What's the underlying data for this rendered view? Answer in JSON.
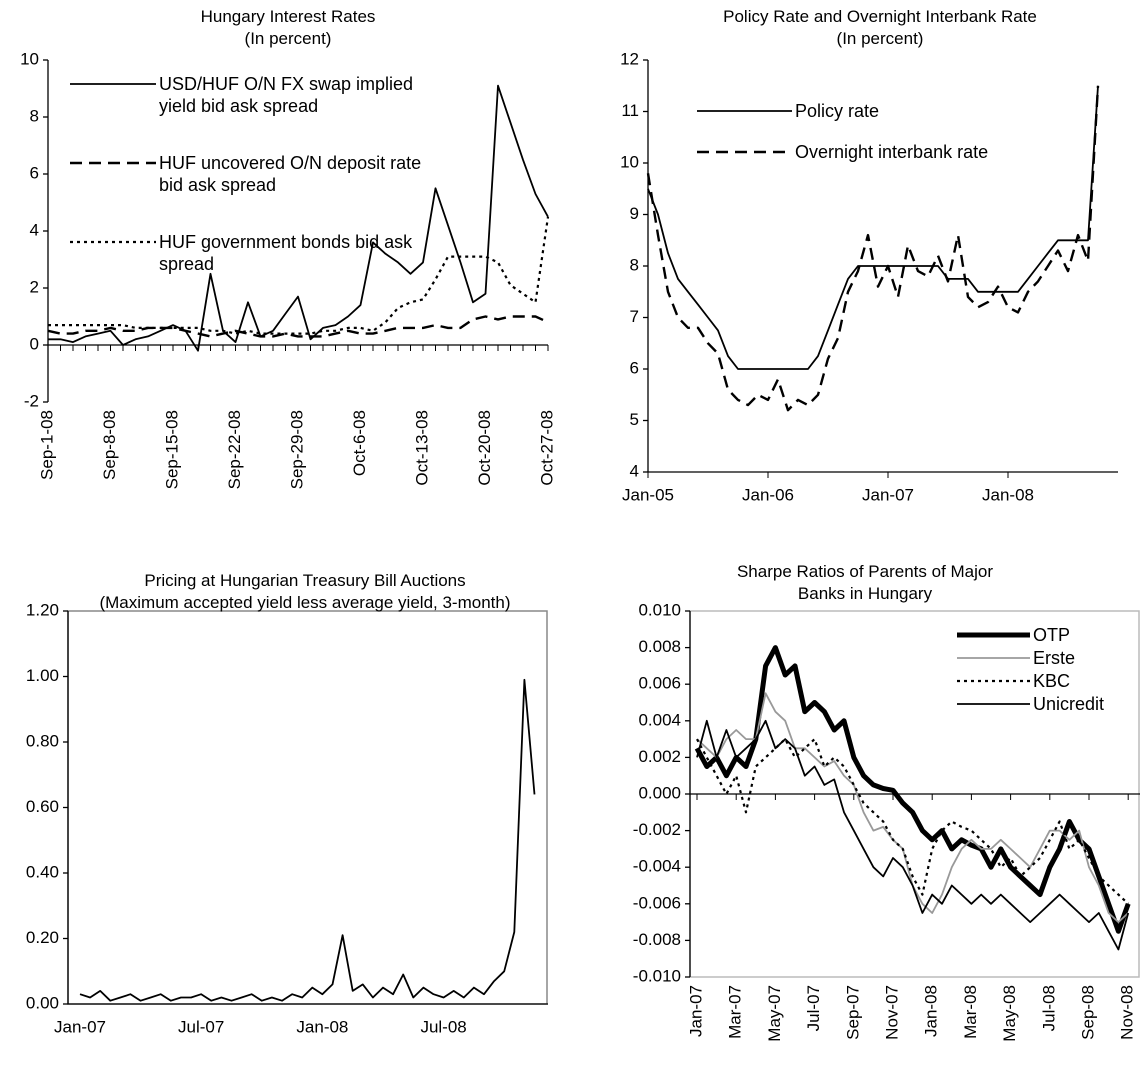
{
  "chart_data": [
    {
      "type": "line",
      "title": "Hungary Interest Rates",
      "subtitle": "(In percent)",
      "categories": [
        "Sep-1-08",
        null,
        null,
        null,
        null,
        "Sep-8-08",
        null,
        null,
        null,
        null,
        "Sep-15-08",
        null,
        null,
        null,
        null,
        "Sep-22-08",
        null,
        null,
        null,
        null,
        "Sep-29-08",
        null,
        null,
        null,
        null,
        "Oct-6-08",
        null,
        null,
        null,
        null,
        "Oct-13-08",
        null,
        null,
        null,
        null,
        "Oct-20-08",
        null,
        null,
        null,
        null,
        "Oct-27-08"
      ],
      "series": [
        {
          "name": "USD/HUF O/N FX swap implied yield bid ask spread",
          "color": "#000000",
          "style": "solid",
          "values": [
            0.2,
            0.2,
            0.1,
            0.3,
            0.4,
            0.5,
            0.0,
            0.2,
            0.3,
            0.5,
            0.7,
            0.5,
            -0.2,
            2.5,
            0.5,
            0.1,
            1.5,
            0.3,
            0.5,
            1.1,
            1.7,
            0.2,
            0.6,
            0.7,
            1.0,
            1.4,
            3.6,
            3.2,
            2.9,
            2.5,
            2.9,
            5.5,
            4.2,
            2.9,
            1.5,
            1.8,
            9.1,
            7.8,
            6.5,
            5.3,
            4.5
          ]
        },
        {
          "name": "HUF uncovered O/N deposit rate bid ask spread",
          "color": "#000000",
          "style": "dashed",
          "values": [
            0.5,
            0.4,
            0.4,
            0.5,
            0.5,
            0.6,
            0.5,
            0.5,
            0.6,
            0.6,
            0.6,
            0.5,
            0.4,
            0.3,
            0.4,
            0.5,
            0.4,
            0.3,
            0.3,
            0.4,
            0.3,
            0.3,
            0.3,
            0.4,
            0.5,
            0.4,
            0.4,
            0.5,
            0.6,
            0.6,
            0.6,
            0.7,
            0.6,
            0.6,
            0.9,
            1.0,
            0.9,
            1.0,
            1.0,
            1.0,
            0.8
          ]
        },
        {
          "name": "HUF government bonds bid ask spread",
          "color": "#000000",
          "style": "dotted",
          "values": [
            0.7,
            0.7,
            0.7,
            0.7,
            0.7,
            0.7,
            0.7,
            0.6,
            0.6,
            0.6,
            0.6,
            0.6,
            0.6,
            0.5,
            0.5,
            0.4,
            0.5,
            0.4,
            0.4,
            0.4,
            0.4,
            0.4,
            0.5,
            0.5,
            0.6,
            0.6,
            0.5,
            0.8,
            1.3,
            1.5,
            1.6,
            2.3,
            3.1,
            3.1,
            3.1,
            3.1,
            2.9,
            2.1,
            1.8,
            1.5,
            4.5
          ]
        }
      ],
      "ylim": [
        -2,
        10
      ],
      "yticks": [
        -2,
        0,
        2,
        4,
        6,
        8,
        10
      ],
      "grid": false
    },
    {
      "type": "line",
      "title": "Policy Rate and Overnight Interbank Rate",
      "subtitle": "(In percent)",
      "categories": [
        "Jan-05",
        null,
        null,
        null,
        null,
        null,
        null,
        null,
        null,
        null,
        null,
        null,
        "Jan-06",
        null,
        null,
        null,
        null,
        null,
        null,
        null,
        null,
        null,
        null,
        null,
        "Jan-07",
        null,
        null,
        null,
        null,
        null,
        null,
        null,
        null,
        null,
        null,
        null,
        "Jan-08",
        null,
        null,
        null,
        null,
        null,
        null,
        null,
        null,
        null
      ],
      "series": [
        {
          "name": "Policy rate",
          "color": "#000000",
          "style": "solid",
          "values": [
            9.5,
            9.0,
            8.25,
            7.75,
            7.5,
            7.25,
            7.0,
            6.75,
            6.25,
            6.0,
            6.0,
            6.0,
            6.0,
            6.0,
            6.0,
            6.0,
            6.0,
            6.25,
            6.75,
            7.25,
            7.75,
            8.0,
            8.0,
            8.0,
            8.0,
            8.0,
            8.0,
            8.0,
            8.0,
            8.0,
            7.75,
            7.75,
            7.75,
            7.5,
            7.5,
            7.5,
            7.5,
            7.5,
            7.75,
            8.0,
            8.25,
            8.5,
            8.5,
            8.5,
            8.5,
            11.5
          ]
        },
        {
          "name": "Overnight interbank rate",
          "color": "#000000",
          "style": "dashed",
          "values": [
            9.8,
            8.6,
            7.5,
            7.0,
            6.8,
            6.8,
            6.5,
            6.3,
            5.6,
            5.4,
            5.3,
            5.5,
            5.4,
            5.8,
            5.2,
            5.4,
            5.3,
            5.5,
            6.2,
            6.6,
            7.5,
            7.9,
            8.6,
            7.6,
            8.0,
            7.4,
            8.4,
            7.9,
            7.8,
            8.2,
            7.7,
            8.6,
            7.4,
            7.2,
            7.3,
            7.6,
            7.2,
            7.1,
            7.5,
            7.7,
            8.0,
            8.3,
            7.9,
            8.6,
            8.1,
            11.5
          ]
        }
      ],
      "ylim": [
        4,
        12
      ],
      "yticks": [
        4,
        5,
        6,
        7,
        8,
        9,
        10,
        11,
        12
      ],
      "grid": false
    },
    {
      "type": "line",
      "title": "Pricing at Hungarian Treasury Bill Auctions",
      "subtitle": "(Maximum accepted yield less average yield, 3-month)",
      "categories": [
        "Jan-07",
        null,
        null,
        null,
        null,
        null,
        null,
        null,
        null,
        null,
        null,
        null,
        "Jul-07",
        null,
        null,
        null,
        null,
        null,
        null,
        null,
        null,
        null,
        null,
        null,
        "Jan-08",
        null,
        null,
        null,
        null,
        null,
        null,
        null,
        null,
        null,
        null,
        null,
        "Jul-08",
        null,
        null,
        null,
        null,
        null,
        null,
        null,
        null,
        null
      ],
      "series": [
        {
          "name": "Pricing",
          "color": "#000000",
          "style": "solid",
          "values": [
            0.03,
            0.02,
            0.04,
            0.01,
            0.02,
            0.03,
            0.01,
            0.02,
            0.03,
            0.01,
            0.02,
            0.02,
            0.03,
            0.01,
            0.02,
            0.01,
            0.02,
            0.03,
            0.01,
            0.02,
            0.01,
            0.03,
            0.02,
            0.05,
            0.03,
            0.06,
            0.21,
            0.04,
            0.06,
            0.02,
            0.05,
            0.03,
            0.09,
            0.02,
            0.05,
            0.03,
            0.02,
            0.04,
            0.02,
            0.05,
            0.03,
            0.07,
            0.1,
            0.22,
            0.99,
            0.64
          ]
        }
      ],
      "ylim": [
        0,
        1.2
      ],
      "yticks": [
        {
          "value": 0,
          "label": "0.00"
        },
        {
          "value": 0.2,
          "label": "0.20"
        },
        {
          "value": 0.4,
          "label": "0.40"
        },
        {
          "value": 0.6,
          "label": "0.60"
        },
        {
          "value": 0.8,
          "label": "0.80"
        },
        {
          "value": 1.0,
          "label": "1.00"
        },
        {
          "value": 1.2,
          "label": "1.20"
        }
      ],
      "grid": false
    },
    {
      "type": "line",
      "title": "Sharpe Ratios of Parents of Major Banks in Hungary",
      "categories": [
        "Jan-07",
        null,
        null,
        null,
        "Mar-07",
        null,
        null,
        null,
        "May-07",
        null,
        null,
        null,
        "Jul-07",
        null,
        null,
        null,
        "Sep-07",
        null,
        null,
        null,
        "Nov-07",
        null,
        null,
        null,
        "Jan-08",
        null,
        null,
        null,
        "Mar-08",
        null,
        null,
        null,
        "May-08",
        null,
        null,
        null,
        "Jul-08",
        null,
        null,
        null,
        "Sep-08",
        null,
        null,
        null,
        "Nov-08"
      ],
      "series": [
        {
          "name": "OTP",
          "color": "#000000",
          "style": "bold",
          "values": [
            0.0025,
            0.0015,
            0.002,
            0.001,
            0.002,
            0.0015,
            0.003,
            0.007,
            0.008,
            0.0065,
            0.007,
            0.0045,
            0.005,
            0.0045,
            0.0035,
            0.004,
            0.002,
            0.001,
            0.0005,
            0.0003,
            0.0002,
            -0.0005,
            -0.001,
            -0.002,
            -0.0025,
            -0.002,
            -0.003,
            -0.0025,
            -0.0028,
            -0.003,
            -0.004,
            -0.003,
            -0.004,
            -0.0045,
            -0.005,
            -0.0055,
            -0.004,
            -0.003,
            -0.0015,
            -0.0025,
            -0.003,
            -0.0045,
            -0.006,
            -0.0075,
            -0.006
          ]
        },
        {
          "name": "Erste",
          "color": "#999999",
          "style": "solid",
          "values": [
            0.003,
            0.0025,
            0.002,
            0.003,
            0.0035,
            0.003,
            0.003,
            0.0055,
            0.0045,
            0.004,
            0.0025,
            0.0025,
            0.002,
            0.0015,
            0.0018,
            0.001,
            0.0005,
            -0.001,
            -0.002,
            -0.0018,
            -0.0025,
            -0.003,
            -0.005,
            -0.006,
            -0.0065,
            -0.0055,
            -0.004,
            -0.003,
            -0.0025,
            -0.003,
            -0.003,
            -0.0025,
            -0.003,
            -0.0035,
            -0.004,
            -0.003,
            -0.002,
            -0.002,
            -0.0025,
            -0.002,
            -0.004,
            -0.005,
            -0.0065,
            -0.007,
            -0.0065
          ]
        },
        {
          "name": "KBC",
          "color": "#000000",
          "style": "dotted",
          "values": [
            0.003,
            0.002,
            0.001,
            0.0,
            0.001,
            -0.001,
            0.0015,
            0.002,
            0.0025,
            0.003,
            0.002,
            0.0025,
            0.003,
            0.0015,
            0.002,
            0.0015,
            0.0005,
            -0.0005,
            -0.001,
            -0.0015,
            -0.0025,
            -0.003,
            -0.0045,
            -0.0055,
            -0.003,
            -0.002,
            -0.0015,
            -0.0018,
            -0.002,
            -0.0025,
            -0.003,
            -0.004,
            -0.0035,
            -0.0045,
            -0.004,
            -0.0035,
            -0.0025,
            -0.0015,
            -0.003,
            -0.0025,
            -0.0035,
            -0.0045,
            -0.005,
            -0.0055,
            -0.006
          ]
        },
        {
          "name": "Unicredit",
          "color": "#000000",
          "style": "solid",
          "values": [
            0.002,
            0.004,
            0.002,
            0.0035,
            0.002,
            0.0025,
            0.003,
            0.004,
            0.0025,
            0.003,
            0.0025,
            0.001,
            0.0015,
            0.0005,
            0.0008,
            -0.001,
            -0.002,
            -0.003,
            -0.004,
            -0.0045,
            -0.0035,
            -0.004,
            -0.005,
            -0.0065,
            -0.0055,
            -0.006,
            -0.005,
            -0.0055,
            -0.006,
            -0.0055,
            -0.006,
            -0.0055,
            -0.006,
            -0.0065,
            -0.007,
            -0.0065,
            -0.006,
            -0.0055,
            -0.006,
            -0.0065,
            -0.007,
            -0.0065,
            -0.0075,
            -0.0085,
            -0.0065
          ]
        }
      ],
      "ylim": [
        -0.01,
        0.01
      ],
      "yticks": [
        {
          "value": -0.01,
          "label": "-0.010"
        },
        {
          "value": -0.008,
          "label": "-0.008"
        },
        {
          "value": -0.006,
          "label": "-0.006"
        },
        {
          "value": -0.004,
          "label": "-0.004"
        },
        {
          "value": -0.002,
          "label": "-0.002"
        },
        {
          "value": 0,
          "label": "0.000"
        },
        {
          "value": 0.002,
          "label": "0.002"
        },
        {
          "value": 0.004,
          "label": "0.004"
        },
        {
          "value": 0.006,
          "label": "0.006"
        },
        {
          "value": 0.008,
          "label": "0.008"
        },
        {
          "value": 0.01,
          "label": "0.010"
        }
      ],
      "grid": false
    }
  ]
}
